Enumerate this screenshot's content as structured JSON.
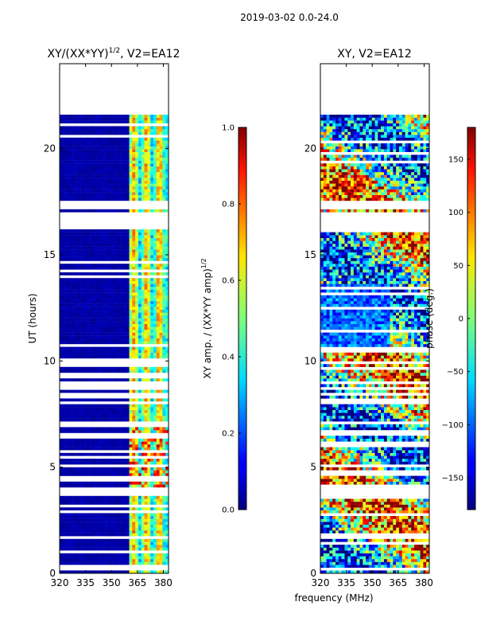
{
  "figure": {
    "suptitle": "2019-03-02 0.0-24.0",
    "xlabel": "frequency (MHz)"
  },
  "chart_data": [
    {
      "type": "heatmap",
      "title_main": "XY/(XX*YY)",
      "title_sup": "1/2",
      "title_tail": ", V2=EA12",
      "ylabel": "UT (hours)",
      "xlim": [
        320,
        383
      ],
      "ylim": [
        0,
        24
      ],
      "xticks": [
        320,
        335,
        350,
        365,
        380
      ],
      "yticks": [
        0,
        5,
        10,
        15,
        20
      ],
      "data_extent_hours": [
        0,
        21.6
      ],
      "gap_hours": [
        [
          16.2,
          17.0
        ],
        [
          17.2,
          17.5
        ]
      ],
      "colorbar": {
        "label_main": "XY amp. / (XX*YY amp)",
        "label_sup": "1/2",
        "range": [
          0.0,
          1.0
        ],
        "ticks": [
          "0.0",
          "0.2",
          "0.4",
          "0.6",
          "0.8",
          "1.0"
        ]
      }
    },
    {
      "type": "heatmap",
      "title": "XY, V2=EA12",
      "xlim": [
        320,
        383
      ],
      "ylim": [
        0,
        24
      ],
      "xticks": [
        320,
        335,
        350,
        365,
        380
      ],
      "yticks": [
        0,
        5,
        10,
        15,
        20
      ],
      "data_extent_hours": [
        0,
        21.6
      ],
      "gap_hours": [
        [
          16.2,
          17.0
        ],
        [
          17.2,
          17.5
        ]
      ],
      "colorbar": {
        "label": "phase (deg.)",
        "range": [
          -180,
          180
        ],
        "ticks": [
          "150",
          "100",
          "50",
          "0",
          "−50",
          "−100",
          "−150"
        ]
      }
    }
  ]
}
